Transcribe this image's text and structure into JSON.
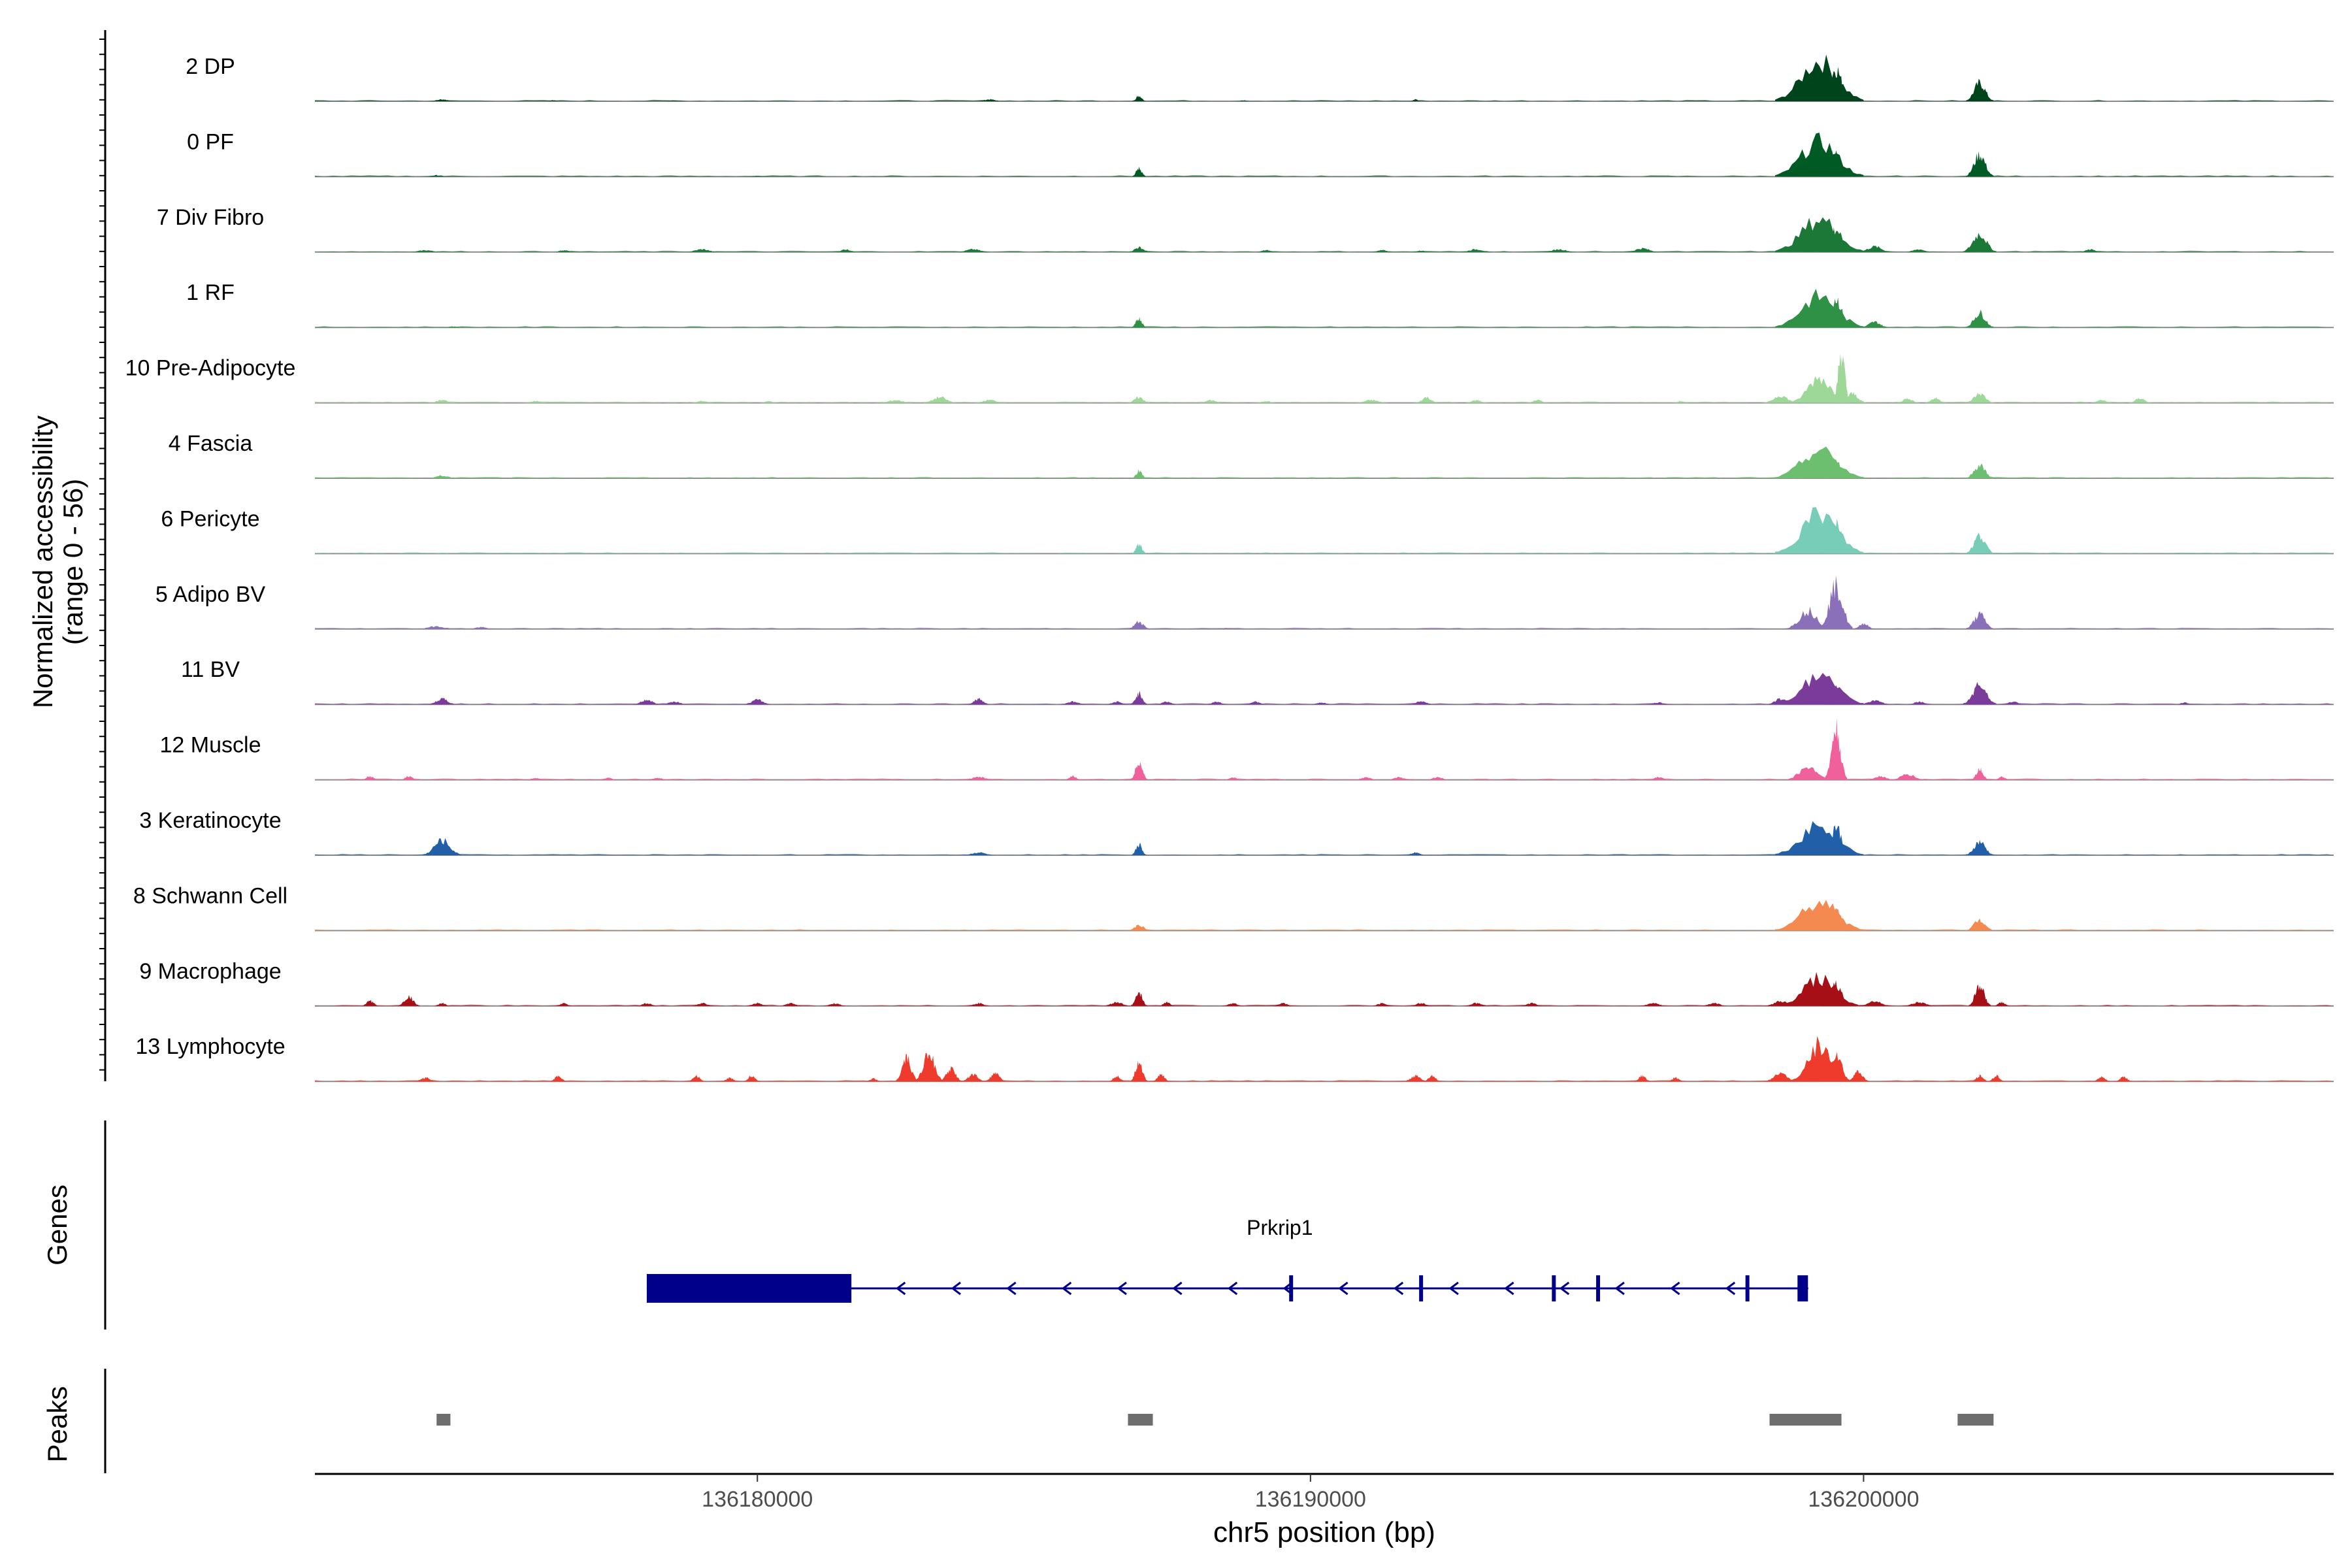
{
  "chart_data": {
    "type": "area",
    "title": "",
    "chromosome": "chr5",
    "xlabel": "chr5 position (bp)",
    "xlim": [
      136172000,
      136208500
    ],
    "x_ticks": [
      136180000,
      136190000,
      136200000
    ],
    "x_tick_labels": [
      "136180000",
      "136190000",
      "136200000"
    ],
    "ylabel_line1": "Normalized accessibility",
    "ylabel_line2": "(range 0 - 56)",
    "ylim": [
      0,
      56
    ],
    "series": [
      {
        "name": "2 DP",
        "color": "#00441b",
        "peaks": [
          [
            136174300,
            2,
            250
          ],
          [
            136176300,
            1.2,
            150
          ],
          [
            136178500,
            1,
            200
          ],
          [
            136184200,
            2,
            250
          ],
          [
            136186900,
            6,
            130
          ],
          [
            136188800,
            1,
            150
          ],
          [
            136191900,
            2,
            100
          ],
          [
            136199200,
            44,
            800
          ],
          [
            136199500,
            36,
            250
          ],
          [
            136202100,
            20,
            250
          ]
        ]
      },
      {
        "name": "0 PF",
        "color": "#005a24",
        "peaks": [
          [
            136174200,
            1.5,
            250
          ],
          [
            136180000,
            1,
            200
          ],
          [
            136186900,
            9,
            130
          ],
          [
            136199200,
            38,
            800
          ],
          [
            136199450,
            28,
            250
          ],
          [
            136202100,
            24,
            250
          ]
        ]
      },
      {
        "name": "7 Div Fibro",
        "color": "#1b7837",
        "peaks": [
          [
            136174000,
            2,
            300
          ],
          [
            136176500,
            2,
            200
          ],
          [
            136179000,
            3,
            300
          ],
          [
            136181600,
            3,
            200
          ],
          [
            136183900,
            3,
            300
          ],
          [
            136186900,
            5,
            200
          ],
          [
            136189200,
            2,
            200
          ],
          [
            136191300,
            2,
            200
          ],
          [
            136192000,
            1.5,
            200
          ],
          [
            136193000,
            3,
            300
          ],
          [
            136194500,
            3,
            300
          ],
          [
            136196000,
            4,
            300
          ],
          [
            136199200,
            36,
            800
          ],
          [
            136199500,
            25,
            250
          ],
          [
            136200200,
            6,
            300
          ],
          [
            136201000,
            3,
            250
          ],
          [
            136202100,
            20,
            300
          ],
          [
            136204100,
            3,
            200
          ]
        ]
      },
      {
        "name": "1 RF",
        "color": "#2e9146",
        "peaks": [
          [
            136174500,
            1,
            200
          ],
          [
            136186900,
            10,
            130
          ],
          [
            136199200,
            34,
            800
          ],
          [
            136199500,
            32,
            250
          ],
          [
            136200200,
            6,
            250
          ],
          [
            136202100,
            16,
            250
          ]
        ]
      },
      {
        "name": "10 Pre-Adipocyte",
        "color": "#9ed898",
        "peaks": [
          [
            136174300,
            3,
            250
          ],
          [
            136176000,
            2,
            200
          ],
          [
            136179000,
            2,
            200
          ],
          [
            136180200,
            2,
            150
          ],
          [
            136182500,
            3,
            300
          ],
          [
            136183300,
            6,
            300
          ],
          [
            136184200,
            3,
            300
          ],
          [
            136186900,
            6,
            200
          ],
          [
            136188200,
            3,
            200
          ],
          [
            136189200,
            2,
            200
          ],
          [
            136191100,
            3,
            300
          ],
          [
            136192100,
            6,
            200
          ],
          [
            136193000,
            3,
            200
          ],
          [
            136194100,
            3,
            200
          ],
          [
            136196700,
            2,
            150
          ],
          [
            136198500,
            8,
            300
          ],
          [
            136199200,
            28,
            500
          ],
          [
            136199600,
            54,
            150
          ],
          [
            136199800,
            10,
            250
          ],
          [
            136200800,
            5,
            200
          ],
          [
            136201300,
            5,
            200
          ],
          [
            136202100,
            10,
            250
          ],
          [
            136204300,
            3,
            200
          ],
          [
            136205000,
            5,
            200
          ]
        ]
      },
      {
        "name": "4 Fascia",
        "color": "#6bbf6e",
        "peaks": [
          [
            136174300,
            3,
            250
          ],
          [
            136186900,
            8,
            130
          ],
          [
            136199200,
            30,
            800
          ],
          [
            136199500,
            20,
            250
          ],
          [
            136202100,
            14,
            250
          ]
        ]
      },
      {
        "name": "6 Pericyte",
        "color": "#78cdb9",
        "peaks": [
          [
            136174300,
            1,
            200
          ],
          [
            136186900,
            10,
            130
          ],
          [
            136199200,
            44,
            800
          ],
          [
            136199500,
            36,
            250
          ],
          [
            136202100,
            20,
            250
          ]
        ]
      },
      {
        "name": "5 Adipo BV",
        "color": "#8a70b9",
        "peaks": [
          [
            136174200,
            3,
            350
          ],
          [
            136175000,
            2,
            250
          ],
          [
            136186900,
            8,
            200
          ],
          [
            136188500,
            1,
            200
          ],
          [
            136199000,
            20,
            400
          ],
          [
            136199500,
            46,
            300
          ],
          [
            136200000,
            6,
            200
          ],
          [
            136202100,
            16,
            250
          ]
        ]
      },
      {
        "name": "11 BV",
        "color": "#7a3b9b",
        "peaks": [
          [
            136174300,
            6,
            250
          ],
          [
            136178000,
            5,
            250
          ],
          [
            136178500,
            3,
            250
          ],
          [
            136180000,
            5,
            250
          ],
          [
            136184000,
            6,
            200
          ],
          [
            136185700,
            3,
            250
          ],
          [
            136186500,
            3,
            200
          ],
          [
            136186900,
            12,
            150
          ],
          [
            136187400,
            3,
            200
          ],
          [
            136188300,
            3,
            200
          ],
          [
            136189000,
            3,
            200
          ],
          [
            136190200,
            2,
            200
          ],
          [
            136192000,
            3,
            250
          ],
          [
            136196300,
            2,
            250
          ],
          [
            136198500,
            6,
            250
          ],
          [
            136199200,
            30,
            800
          ],
          [
            136199500,
            20,
            250
          ],
          [
            136200200,
            4,
            300
          ],
          [
            136201000,
            3,
            200
          ],
          [
            136202100,
            22,
            300
          ],
          [
            136202700,
            3,
            200
          ],
          [
            136205800,
            2,
            150
          ]
        ]
      },
      {
        "name": "12 Muscle",
        "color": "#f0609b",
        "peaks": [
          [
            136173000,
            4,
            150
          ],
          [
            136173700,
            4,
            150
          ],
          [
            136176000,
            2,
            200
          ],
          [
            136177300,
            2,
            200
          ],
          [
            136178200,
            2,
            200
          ],
          [
            136184000,
            3,
            300
          ],
          [
            136185700,
            4,
            150
          ],
          [
            136186900,
            20,
            150
          ],
          [
            136188600,
            3,
            150
          ],
          [
            136191000,
            3,
            200
          ],
          [
            136191600,
            3,
            200
          ],
          [
            136192300,
            3,
            200
          ],
          [
            136196300,
            3,
            200
          ],
          [
            136199000,
            14,
            400
          ],
          [
            136199500,
            54,
            200
          ],
          [
            136200300,
            4,
            250
          ],
          [
            136200800,
            6,
            300
          ],
          [
            136202100,
            12,
            150
          ],
          [
            136202500,
            3,
            150
          ]
        ]
      },
      {
        "name": "3 Keratinocyte",
        "color": "#2160a8",
        "peaks": [
          [
            136174300,
            16,
            350
          ],
          [
            136184000,
            3,
            300
          ],
          [
            136186900,
            12,
            130
          ],
          [
            136191900,
            3,
            200
          ],
          [
            136199200,
            34,
            800
          ],
          [
            136199500,
            30,
            250
          ],
          [
            136202100,
            14,
            250
          ]
        ]
      },
      {
        "name": "8 Schwann Cell",
        "color": "#f48a4f",
        "peaks": [
          [
            136186900,
            6,
            200
          ],
          [
            136199200,
            32,
            800
          ],
          [
            136199500,
            22,
            250
          ],
          [
            136202100,
            12,
            250
          ]
        ]
      },
      {
        "name": "9 Macrophage",
        "color": "#a50f15",
        "peaks": [
          [
            136173000,
            6,
            150
          ],
          [
            136173700,
            10,
            200
          ],
          [
            136174300,
            3,
            150
          ],
          [
            136176500,
            3,
            150
          ],
          [
            136178000,
            3,
            200
          ],
          [
            136179000,
            3,
            200
          ],
          [
            136180000,
            3,
            200
          ],
          [
            136180600,
            3,
            200
          ],
          [
            136181400,
            3,
            200
          ],
          [
            136184000,
            3,
            200
          ],
          [
            136186500,
            4,
            250
          ],
          [
            136186900,
            14,
            150
          ],
          [
            136187400,
            4,
            150
          ],
          [
            136188600,
            3,
            200
          ],
          [
            136189500,
            3,
            200
          ],
          [
            136191300,
            3,
            200
          ],
          [
            136192000,
            3,
            200
          ],
          [
            136193000,
            3,
            250
          ],
          [
            136194000,
            3,
            200
          ],
          [
            136196200,
            3,
            250
          ],
          [
            136197300,
            3,
            250
          ],
          [
            136198500,
            5,
            300
          ],
          [
            136199200,
            30,
            700
          ],
          [
            136199500,
            24,
            250
          ],
          [
            136200200,
            5,
            300
          ],
          [
            136201000,
            4,
            300
          ],
          [
            136202100,
            22,
            200
          ],
          [
            136202500,
            4,
            150
          ]
        ]
      },
      {
        "name": "13 Lymphocyte",
        "color": "#ef3b2c",
        "peaks": [
          [
            136174000,
            4,
            200
          ],
          [
            136176400,
            6,
            150
          ],
          [
            136178900,
            6,
            150
          ],
          [
            136179500,
            4,
            150
          ],
          [
            136179900,
            6,
            150
          ],
          [
            136182100,
            3,
            150
          ],
          [
            136182700,
            24,
            200
          ],
          [
            136183100,
            32,
            250
          ],
          [
            136183500,
            14,
            200
          ],
          [
            136183900,
            8,
            200
          ],
          [
            136184300,
            8,
            200
          ],
          [
            136186500,
            6,
            150
          ],
          [
            136186900,
            22,
            150
          ],
          [
            136187300,
            8,
            150
          ],
          [
            136191900,
            6,
            200
          ],
          [
            136192200,
            6,
            150
          ],
          [
            136196000,
            6,
            150
          ],
          [
            136196600,
            4,
            150
          ],
          [
            136198500,
            8,
            300
          ],
          [
            136199200,
            40,
            500
          ],
          [
            136199500,
            30,
            250
          ],
          [
            136199900,
            10,
            200
          ],
          [
            136202100,
            6,
            150
          ],
          [
            136202400,
            6,
            150
          ],
          [
            136204300,
            5,
            150
          ],
          [
            136204700,
            5,
            150
          ]
        ]
      }
    ],
    "genes": [
      {
        "name": "Prkrip1",
        "strand": "-",
        "start": 136178000,
        "end": 136199000,
        "thick_start": 136178000,
        "thick_end": 136181700,
        "exons": [
          136189650,
          136192000,
          136194400,
          136195200,
          136197900,
          136198900
        ]
      }
    ],
    "genes_label": "Genes",
    "peaks_label": "Peaks",
    "peak_regions": [
      [
        136174200,
        136174450
      ],
      [
        136186700,
        136187150
      ],
      [
        136198300,
        136199600
      ],
      [
        136201700,
        136202350
      ]
    ]
  }
}
